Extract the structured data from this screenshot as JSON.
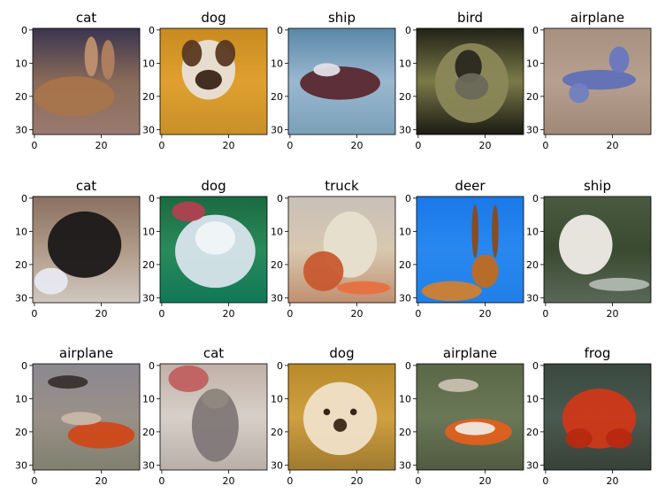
{
  "chart_data": {
    "type": "image-grid",
    "rows": 3,
    "cols": 5,
    "image_size": [
      32,
      32
    ],
    "x_ticks": [
      0,
      20
    ],
    "y_ticks": [
      0,
      10,
      20,
      30
    ],
    "xlim": [
      -0.5,
      31.5
    ],
    "ylim": [
      31.5,
      -0.5
    ],
    "grid": false,
    "panels": [
      {
        "title": "cat",
        "scene": {
          "top": "#3a3550",
          "mid": "#8a6a58",
          "bottom": "#9a7a70",
          "blobs": [
            {
              "cx": 12,
              "cy": 20,
              "rx": 12,
              "ry": 6,
              "c": "#a8744c"
            },
            {
              "cx": 17,
              "cy": 8,
              "rx": 2,
              "ry": 6,
              "c": "#c09070"
            },
            {
              "cx": 22,
              "cy": 9,
              "rx": 2,
              "ry": 6,
              "c": "#b08060"
            }
          ]
        }
      },
      {
        "title": "dog",
        "scene": {
          "top": "#c88a20",
          "mid": "#e0a030",
          "bottom": "#c89028",
          "blobs": [
            {
              "cx": 14,
              "cy": 12,
              "rx": 8,
              "ry": 9,
              "c": "#e8e0d8"
            },
            {
              "cx": 14,
              "cy": 15,
              "rx": 4,
              "ry": 3,
              "c": "#3a2418"
            },
            {
              "cx": 9,
              "cy": 7,
              "rx": 3,
              "ry": 4,
              "c": "#5a3820"
            },
            {
              "cx": 19,
              "cy": 7,
              "rx": 3,
              "ry": 4,
              "c": "#5a3820"
            }
          ]
        }
      },
      {
        "title": "ship",
        "scene": {
          "top": "#5a88a8",
          "mid": "#9ab8d0",
          "bottom": "#7aa0b8",
          "blobs": [
            {
              "cx": 15,
              "cy": 16,
              "rx": 12,
              "ry": 5,
              "c": "#5a2830"
            },
            {
              "cx": 11,
              "cy": 12,
              "rx": 4,
              "ry": 2,
              "c": "#e0e0e8"
            }
          ]
        }
      },
      {
        "title": "bird",
        "scene": {
          "top": "#222218",
          "mid": "#7a7a48",
          "bottom": "#1a1a14",
          "blobs": [
            {
              "cx": 16,
              "cy": 16,
              "rx": 11,
              "ry": 12,
              "c": "#8a8858"
            },
            {
              "cx": 15,
              "cy": 11,
              "rx": 4,
              "ry": 5,
              "c": "#2a2820"
            },
            {
              "cx": 16,
              "cy": 17,
              "rx": 5,
              "ry": 4,
              "c": "#6a6858"
            }
          ]
        }
      },
      {
        "title": "airplane",
        "scene": {
          "top": "#a89080",
          "mid": "#b8a090",
          "bottom": "#a08878",
          "blobs": [
            {
              "cx": 16,
              "cy": 15,
              "rx": 11,
              "ry": 3,
              "c": "#6070b8"
            },
            {
              "cx": 22,
              "cy": 9,
              "rx": 3,
              "ry": 4,
              "c": "#6878c0"
            },
            {
              "cx": 10,
              "cy": 19,
              "rx": 3,
              "ry": 3,
              "c": "#7080c0"
            }
          ]
        }
      },
      {
        "title": "cat",
        "scene": {
          "top": "#8a7060",
          "mid": "#b09a88",
          "bottom": "#d0c8c0",
          "blobs": [
            {
              "cx": 15,
              "cy": 14,
              "rx": 11,
              "ry": 10,
              "c": "#1a1818"
            },
            {
              "cx": 5,
              "cy": 25,
              "rx": 5,
              "ry": 4,
              "c": "#e8e8f0"
            }
          ]
        }
      },
      {
        "title": "dog",
        "scene": {
          "top": "#1a6a40",
          "mid": "#2a8a5a",
          "bottom": "#107858",
          "blobs": [
            {
              "cx": 16,
              "cy": 16,
              "rx": 12,
              "ry": 11,
              "c": "#d8e4ec"
            },
            {
              "cx": 16,
              "cy": 12,
              "rx": 6,
              "ry": 5,
              "c": "#f0f4f8"
            },
            {
              "cx": 8,
              "cy": 4,
              "rx": 5,
              "ry": 3,
              "c": "#b04050"
            }
          ]
        }
      },
      {
        "title": "truck",
        "scene": {
          "top": "#c8c0b8",
          "mid": "#d8c8b0",
          "bottom": "#c09070",
          "blobs": [
            {
              "cx": 18,
              "cy": 14,
              "rx": 8,
              "ry": 10,
              "c": "#e8e0d0"
            },
            {
              "cx": 10,
              "cy": 22,
              "rx": 6,
              "ry": 6,
              "c": "#c85a30"
            },
            {
              "cx": 22,
              "cy": 27,
              "rx": 8,
              "ry": 2,
              "c": "#e87040"
            }
          ]
        }
      },
      {
        "title": "deer",
        "scene": {
          "top": "#1a78e8",
          "mid": "#2888f0",
          "bottom": "#2080e8",
          "blobs": [
            {
              "cx": 20,
              "cy": 22,
              "rx": 4,
              "ry": 5,
              "c": "#c06a20"
            },
            {
              "cx": 10,
              "cy": 28,
              "rx": 9,
              "ry": 3,
              "c": "#d08030"
            },
            {
              "cx": 17,
              "cy": 10,
              "rx": 1,
              "ry": 8,
              "c": "#8a4a18"
            },
            {
              "cx": 23,
              "cy": 10,
              "rx": 1,
              "ry": 8,
              "c": "#8a4a18"
            }
          ]
        }
      },
      {
        "title": "ship",
        "scene": {
          "top": "#4a5a40",
          "mid": "#3a4a30",
          "bottom": "#5a6858",
          "blobs": [
            {
              "cx": 12,
              "cy": 14,
              "rx": 8,
              "ry": 9,
              "c": "#f0ece8"
            },
            {
              "cx": 22,
              "cy": 26,
              "rx": 9,
              "ry": 2,
              "c": "#b0b8b0"
            }
          ]
        }
      },
      {
        "title": "airplane",
        "scene": {
          "top": "#8a8890",
          "mid": "#9a9088",
          "bottom": "#808070",
          "blobs": [
            {
              "cx": 20,
              "cy": 21,
              "rx": 10,
              "ry": 4,
              "c": "#d04818"
            },
            {
              "cx": 10,
              "cy": 5,
              "rx": 6,
              "ry": 2,
              "c": "#3a3030"
            },
            {
              "cx": 14,
              "cy": 16,
              "rx": 6,
              "ry": 2,
              "c": "#c8b8a8"
            }
          ]
        }
      },
      {
        "title": "cat",
        "scene": {
          "top": "#c0b0a8",
          "mid": "#d8d0c8",
          "bottom": "#b8b0a8",
          "blobs": [
            {
              "cx": 16,
              "cy": 18,
              "rx": 7,
              "ry": 11,
              "c": "#807878"
            },
            {
              "cx": 8,
              "cy": 4,
              "rx": 6,
              "ry": 4,
              "c": "#c06060"
            },
            {
              "cx": 16,
              "cy": 10,
              "rx": 4,
              "ry": 3,
              "c": "#908880"
            }
          ]
        }
      },
      {
        "title": "dog",
        "scene": {
          "top": "#b88a28",
          "mid": "#d0a040",
          "bottom": "#a07a30",
          "blobs": [
            {
              "cx": 15,
              "cy": 16,
              "rx": 11,
              "ry": 11,
              "c": "#f0e0c8"
            },
            {
              "cx": 15,
              "cy": 18,
              "rx": 2,
              "ry": 2,
              "c": "#3a2818"
            },
            {
              "cx": 11,
              "cy": 14,
              "rx": 1,
              "ry": 1,
              "c": "#2a1a10"
            },
            {
              "cx": 19,
              "cy": 14,
              "rx": 1,
              "ry": 1,
              "c": "#2a1a10"
            }
          ]
        }
      },
      {
        "title": "airplane",
        "scene": {
          "top": "#5a6848",
          "mid": "#6a7858",
          "bottom": "#505a40",
          "blobs": [
            {
              "cx": 18,
              "cy": 20,
              "rx": 10,
              "ry": 4,
              "c": "#e06020"
            },
            {
              "cx": 17,
              "cy": 19,
              "rx": 6,
              "ry": 2,
              "c": "#f0e8e0"
            },
            {
              "cx": 12,
              "cy": 6,
              "rx": 6,
              "ry": 2,
              "c": "#c8c0b0"
            }
          ]
        }
      },
      {
        "title": "frog",
        "scene": {
          "top": "#3a4840",
          "mid": "#4a5a50",
          "bottom": "#384038",
          "blobs": [
            {
              "cx": 16,
              "cy": 16,
              "rx": 11,
              "ry": 9,
              "c": "#d03818"
            },
            {
              "cx": 10,
              "cy": 22,
              "rx": 4,
              "ry": 3,
              "c": "#b82810"
            },
            {
              "cx": 22,
              "cy": 22,
              "rx": 4,
              "ry": 3,
              "c": "#b82810"
            }
          ]
        }
      }
    ]
  }
}
